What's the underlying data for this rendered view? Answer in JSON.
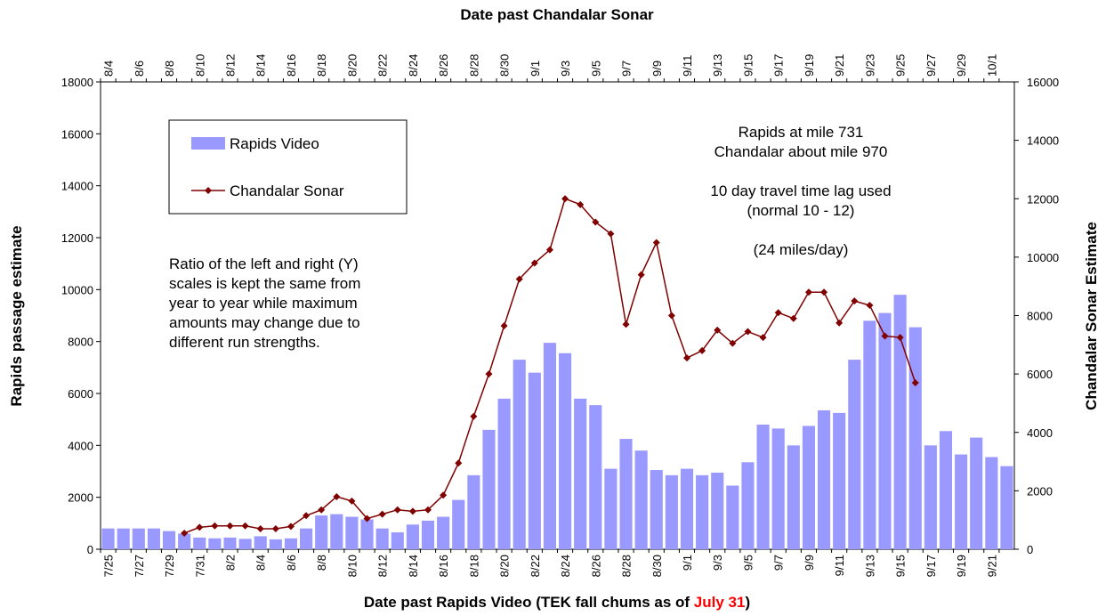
{
  "chart_data": {
    "type": "bar",
    "title": "Date past Chandalar Sonar",
    "x_title": [
      "Date past Rapids Video (TEK fall chums as of ",
      "July 31",
      ")"
    ],
    "x_title_highlight_color": "#ff0000",
    "y_title": "Rapids passage estimate",
    "y2_title": "Chandalar Sonar Estimate",
    "categories": [
      "7/25",
      null,
      "7/27",
      null,
      "7/29",
      null,
      "7/31",
      null,
      "8/2",
      null,
      "8/4",
      null,
      "8/6",
      null,
      "8/8",
      null,
      "8/10",
      null,
      "8/12",
      null,
      "8/14",
      null,
      "8/16",
      null,
      "8/18",
      null,
      "8/20",
      null,
      "8/22",
      null,
      "8/24",
      null,
      "8/26",
      null,
      "8/28",
      null,
      "8/30",
      null,
      "9/1",
      null,
      "9/3",
      null,
      "9/5",
      null,
      "9/7",
      null,
      "9/9",
      null,
      "9/11",
      null,
      "9/13",
      null,
      "9/15",
      null,
      "9/17",
      null,
      "9/19",
      null,
      "9/21",
      null
    ],
    "top_categories": [
      "8/4",
      null,
      "8/6",
      null,
      "8/8",
      null,
      "8/10",
      null,
      "8/12",
      null,
      "8/14",
      null,
      "8/16",
      null,
      "8/18",
      null,
      "8/20",
      null,
      "8/22",
      null,
      "8/24",
      null,
      "8/26",
      null,
      "8/28",
      null,
      "8/30",
      null,
      "9/1",
      null,
      "9/3",
      null,
      "9/5",
      null,
      "9/7",
      null,
      "9/9",
      null,
      "9/11",
      null,
      "9/13",
      null,
      "9/15",
      null,
      "9/17",
      null,
      "9/19",
      null,
      "9/21",
      null,
      "9/23",
      null,
      "9/25",
      null,
      "9/27",
      null,
      "9/29",
      null,
      "10/1",
      null
    ],
    "series": [
      {
        "name": "Rapids Video",
        "type": "bar",
        "color": "#9999ff",
        "values": [
          800,
          800,
          800,
          800,
          700,
          600,
          450,
          420,
          450,
          400,
          500,
          380,
          420,
          800,
          1300,
          1350,
          1250,
          1150,
          800,
          650,
          950,
          1100,
          1250,
          1900,
          2850,
          4600,
          5800,
          7300,
          6800,
          7950,
          7550,
          5800,
          5550,
          3100,
          4250,
          3800,
          3050,
          2850,
          3100,
          2850,
          2950,
          2450,
          3350,
          4800,
          4650,
          4000,
          4750,
          5350,
          5250,
          7300,
          8800,
          9100,
          9800,
          8550,
          4000,
          4550,
          3650,
          4300,
          3550,
          3200
        ]
      },
      {
        "name": "Chandalar Sonar",
        "type": "line",
        "axis": "y2",
        "color": "#800000",
        "values": [
          null,
          null,
          null,
          null,
          null,
          550,
          750,
          800,
          800,
          800,
          700,
          700,
          780,
          1150,
          1350,
          1800,
          1650,
          1050,
          1200,
          1350,
          1300,
          1350,
          1850,
          2950,
          4550,
          6000,
          7650,
          9250,
          9800,
          10250,
          12000,
          11800,
          11200,
          10800,
          7700,
          9400,
          10500,
          8000,
          6550,
          6800,
          7500,
          7050,
          7450,
          7250,
          8100,
          7900,
          8800,
          8800,
          7750,
          8500,
          8350,
          7300,
          7250,
          5700,
          null,
          null,
          null,
          null,
          null,
          null
        ]
      }
    ],
    "ylim": [
      0,
      18000
    ],
    "yticks": [
      0,
      2000,
      4000,
      6000,
      8000,
      10000,
      12000,
      14000,
      16000,
      18000
    ],
    "y2lim": [
      0,
      16000
    ],
    "y2ticks": [
      0,
      2000,
      4000,
      6000,
      8000,
      10000,
      12000,
      14000,
      16000
    ],
    "grid": false,
    "annotations": [
      {
        "lines": [
          "Ratio of the left and right (Y)",
          "scales is kept the same from",
          "year to year while maximum",
          "amounts may change due to",
          "different run strengths."
        ]
      },
      {
        "lines": [
          "Rapids at mile 731",
          "Chandalar about mile 970",
          "",
          "10 day travel time lag used",
          "(normal 10 - 12)",
          "",
          "(24 miles/day)"
        ]
      }
    ]
  }
}
